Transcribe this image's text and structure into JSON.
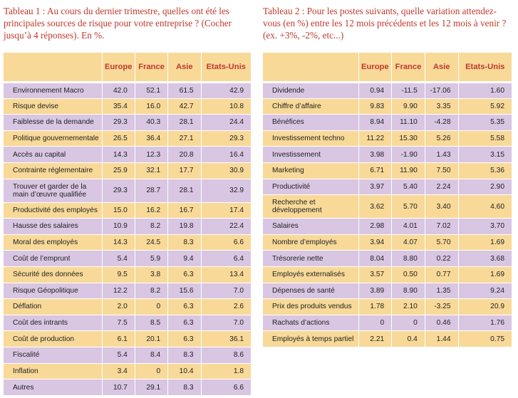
{
  "table1": {
    "caption": "Tableau 1 : Au cours du dernier trimestre, quelles ont été les principales sources de risque pour votre entreprise ? (Cocher jusqu’à 4 réponses). En %.",
    "headers": [
      "Europe",
      "France",
      "Asie",
      "Etats-Unis"
    ],
    "rows": [
      {
        "label": "Environnement Macro",
        "values": [
          "42.0",
          "52.1",
          "61.5",
          "42.9"
        ]
      },
      {
        "label": "Risque devise",
        "values": [
          "35.4",
          "16.0",
          "42.7",
          "10.8"
        ]
      },
      {
        "label": "Faiblesse de la demande",
        "values": [
          "29.3",
          "40.3",
          "28.1",
          "24.4"
        ]
      },
      {
        "label": "Politique gouvernementale",
        "values": [
          "26.5",
          "36.4",
          "27.1",
          "29.3"
        ]
      },
      {
        "label": "Accès au capital",
        "values": [
          "14.3",
          "12.3",
          "20.8",
          "16.4"
        ]
      },
      {
        "label": "Contrainte réglementaire",
        "values": [
          "25.9",
          "32.1",
          "17.7",
          "30.9"
        ]
      },
      {
        "label": "Trouver et garder de la main d’œuvre qualifiée",
        "values": [
          "29.3",
          "28.7",
          "28.1",
          "32.9"
        ]
      },
      {
        "label": "Productivité des employés",
        "values": [
          "15.0",
          "16.2",
          "16.7",
          "17.4"
        ]
      },
      {
        "label": "Hausse des salaires",
        "values": [
          "10.9",
          "8.2",
          "19.8",
          "22.4"
        ]
      },
      {
        "label": "Moral des employés",
        "values": [
          "14.3",
          "24.5",
          "8.3",
          "6.6"
        ]
      },
      {
        "label": "Coût de l’emprunt",
        "values": [
          "5.4",
          "5.9",
          "9.4",
          "6.4"
        ]
      },
      {
        "label": "Sécurité des données",
        "values": [
          "9.5",
          "3.8",
          "6.3",
          "13.4"
        ]
      },
      {
        "label": "Risque Géopolitique",
        "values": [
          "12.2",
          "8.2",
          "15.6",
          "7.0"
        ]
      },
      {
        "label": "Déflation",
        "values": [
          "2.0",
          "0",
          "6.3",
          "2.6"
        ]
      },
      {
        "label": "Coût des intrants",
        "values": [
          "7.5",
          "8.5",
          "6.3",
          "7.0"
        ]
      },
      {
        "label": "Coût de production",
        "values": [
          "6.1",
          "20.1",
          "6.3",
          "36.1"
        ]
      },
      {
        "label": "Fiscalité",
        "values": [
          "5.4",
          "8.4",
          "8.3",
          "8.6"
        ]
      },
      {
        "label": "Inflation",
        "values": [
          "3.4",
          "0",
          "10.4",
          "1.8"
        ]
      },
      {
        "label": "Autres",
        "values": [
          "10.7",
          "29.1",
          "8.3",
          "6.6"
        ]
      }
    ]
  },
  "table2": {
    "caption": "Tableau 2 : Pour les postes suivants, quelle variation attendez-vous (en %) entre les 12 mois précédents et les 12 mois à venir ? (ex. +3%, -2%, etc...)",
    "headers": [
      "Europe",
      "France",
      "Asie",
      "Etats-Unis"
    ],
    "rows": [
      {
        "label": "Dividende",
        "values": [
          "0.94",
          "-11.5",
          "-17.06",
          "1.60"
        ]
      },
      {
        "label": "Chiffre d’affaire",
        "values": [
          "9.83",
          "9.90",
          "3.35",
          "5.92"
        ]
      },
      {
        "label": "Bénéfices",
        "values": [
          "8.94",
          "11.10",
          "-4.28",
          "5.35"
        ]
      },
      {
        "label": "Investissement techno",
        "values": [
          "11.22",
          "15.30",
          "5.26",
          "5.58"
        ]
      },
      {
        "label": "Investissement",
        "values": [
          "3.98",
          "-1.90",
          "1.43",
          "3.15"
        ]
      },
      {
        "label": "Marketing",
        "values": [
          "6.71",
          "11.90",
          "7.50",
          "5.36"
        ]
      },
      {
        "label": "Productivité",
        "values": [
          "3.97",
          "5.40",
          "2.24",
          "2.90"
        ]
      },
      {
        "label": "Recherche et développement",
        "values": [
          "3.62",
          "5.70",
          "3.40",
          "4.60"
        ]
      },
      {
        "label": "Salaires",
        "values": [
          "2.98",
          "4.01",
          "7.02",
          "3.70"
        ]
      },
      {
        "label": "Nombre d’employés",
        "values": [
          "3.94",
          "4.07",
          "5.70",
          "1.69"
        ]
      },
      {
        "label": "Trésorerie nette",
        "values": [
          "8.04",
          "8.80",
          "0.22",
          "3.68"
        ]
      },
      {
        "label": "Employés externalisés",
        "values": [
          "3.57",
          "0.50",
          "0.77",
          "1.69"
        ]
      },
      {
        "label": "Dépenses de santé",
        "values": [
          "3.89",
          "8.90",
          "1.35",
          "9.24"
        ]
      },
      {
        "label": "Prix des produits vendus",
        "values": [
          "1.78",
          "2.10",
          "-3.25",
          "20.9"
        ]
      },
      {
        "label": "Rachats d’actions",
        "values": [
          "0",
          "0",
          "0.46",
          "1.76"
        ]
      },
      {
        "label": "Employés à temps partiel",
        "values": [
          "2.21",
          "0.4",
          "1.44",
          "0.75"
        ]
      }
    ]
  }
}
